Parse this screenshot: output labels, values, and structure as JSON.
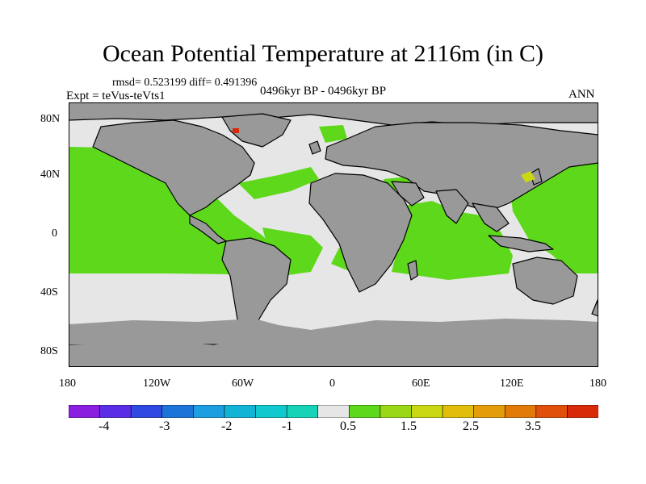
{
  "title": "Ocean Potential Temperature at 2116m (in C)",
  "stats": "rmsd= 0.523199 diff= 0.491396",
  "experiment": "Expt = teVus-teVts1",
  "period": "0496kyr BP - 0496kyr BP",
  "season": "ANN",
  "lat_ticks": [
    "80N",
    "40N",
    "0",
    "40S",
    "80S"
  ],
  "lon_ticks": [
    "180",
    "120W",
    "60W",
    "0",
    "60E",
    "120E",
    "180"
  ],
  "colorbar": {
    "labels": [
      "-4",
      "-3",
      "-2",
      "-1",
      "0.5",
      "1.5",
      "2.5",
      "3.5"
    ],
    "colors": [
      "#8a1fe0",
      "#5a2ee6",
      "#2f49e2",
      "#1c73d8",
      "#1c9ee0",
      "#12b4d6",
      "#10c9cf",
      "#16d3b8",
      "#e6e6e6",
      "#5ed81a",
      "#9ad817",
      "#c9d812",
      "#e2be0c",
      "#e39c0a",
      "#e27a0a",
      "#e0500a",
      "#d82a08"
    ]
  },
  "colors": {
    "land": "#999999",
    "ocean_near_zero": "#e6e6e6",
    "ocean_warm": "#5ed81a",
    "hotspot_yellow": "#c9d812",
    "hotspot_red": "#d82a08"
  }
}
